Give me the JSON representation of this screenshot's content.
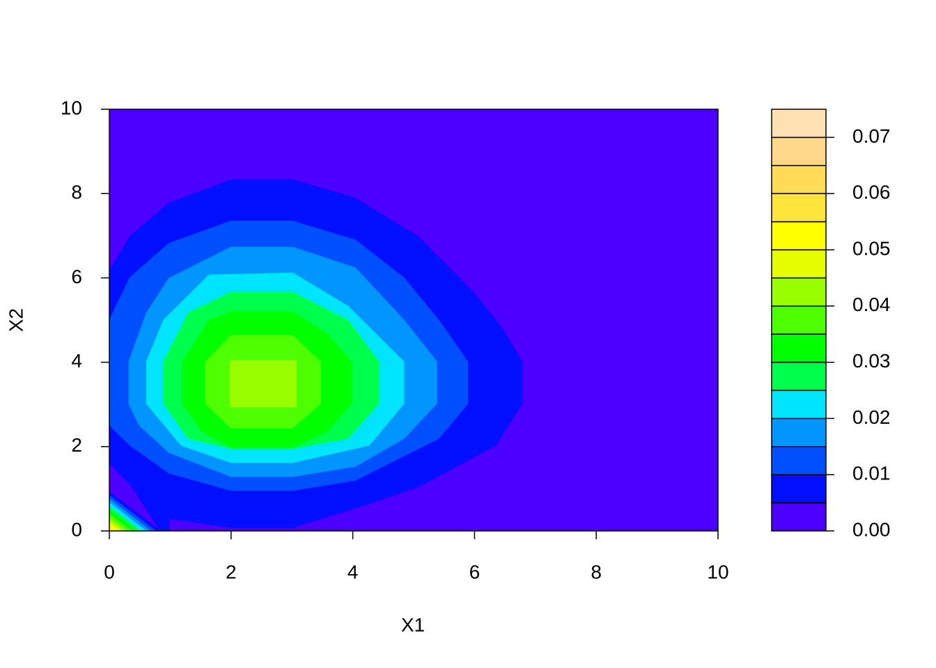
{
  "chart_data": {
    "type": "contour",
    "xlabel": "X1",
    "ylabel": "X2",
    "xlim": [
      0,
      10
    ],
    "ylim": [
      0,
      10
    ],
    "xticks": [
      0,
      2,
      4,
      6,
      8,
      10
    ],
    "yticks": [
      0,
      2,
      4,
      6,
      8,
      10
    ],
    "levels": [
      0,
      0.005,
      0.01,
      0.015,
      0.02,
      0.025,
      0.03,
      0.035,
      0.04,
      0.045,
      0.05,
      0.055,
      0.06,
      0.065,
      0.07,
      0.075
    ],
    "colors": [
      "#4C00FF",
      "#0010FF",
      "#0050FF",
      "#0095FF",
      "#00E5FF",
      "#00FF4D",
      "#00FF00",
      "#4DFF00",
      "#99FF00",
      "#E6FF00",
      "#FFFF00",
      "#FFE53B",
      "#FFDB58",
      "#FFD88A",
      "#FFE0B3"
    ],
    "colorbar_ticks": [
      {
        "value": 0,
        "label": "0.00"
      },
      0.01,
      0.02,
      0.03,
      0.04,
      0.05,
      0.06,
      0.07
    ],
    "regions": [
      {
        "band": 1,
        "x": [
          0,
          0.34,
          0.98,
          2.0,
          3.01,
          4.04,
          5.07,
          5.98,
          6.44,
          6.78,
          6.78,
          6.35,
          5.07,
          4.04,
          3.01,
          2.0,
          0.98,
          0.98,
          0.84,
          0.38,
          0
        ],
        "y": [
          6.15,
          6.98,
          7.77,
          8.33,
          8.33,
          7.89,
          6.98,
          5.66,
          4.83,
          4.01,
          3.02,
          2.03,
          1.04,
          0.54,
          0.08,
          0.08,
          0.3,
          0,
          0,
          1.04,
          1.62
        ]
      },
      {
        "band": 1,
        "x": [
          0,
          0.84,
          0
        ],
        "y": [
          0,
          0,
          0.92
        ]
      },
      {
        "band": 2,
        "x": [
          0,
          0.76,
          0
        ],
        "y": [
          0,
          0,
          0.84
        ]
      },
      {
        "band": 3,
        "x": [
          0,
          0.68,
          0
        ],
        "y": [
          0,
          0,
          0.76
        ]
      },
      {
        "band": 4,
        "x": [
          0,
          0.6,
          0
        ],
        "y": [
          0,
          0,
          0.67
        ]
      },
      {
        "band": 5,
        "x": [
          0,
          0.52,
          0
        ],
        "y": [
          0,
          0,
          0.58
        ]
      },
      {
        "band": 6,
        "x": [
          0,
          0.44,
          0
        ],
        "y": [
          0,
          0,
          0.49
        ]
      },
      {
        "band": 7,
        "x": [
          0,
          0.36,
          0
        ],
        "y": [
          0,
          0,
          0.4
        ]
      },
      {
        "band": 8,
        "x": [
          0,
          0.28,
          0
        ],
        "y": [
          0,
          0,
          0.31
        ]
      },
      {
        "band": 9,
        "x": [
          0,
          0.2,
          0
        ],
        "y": [
          0,
          0,
          0.22
        ]
      },
      {
        "band": 10,
        "x": [
          0,
          0.12,
          0
        ],
        "y": [
          0,
          0,
          0.13
        ]
      },
      {
        "band": 2,
        "x": [
          0,
          0.34,
          0.98,
          2.0,
          3.01,
          4.04,
          4.84,
          5.41,
          5.89,
          5.89,
          5.41,
          4.04,
          3.01,
          2.0,
          0.98,
          0.34,
          0
        ],
        "y": [
          5.0,
          6.01,
          6.82,
          7.35,
          7.35,
          6.9,
          6.0,
          5.0,
          4.01,
          3.02,
          2.19,
          1.2,
          0.96,
          0.96,
          1.37,
          2.03,
          2.51
        ]
      },
      {
        "band": 3,
        "x": [
          0.32,
          0.61,
          0.98,
          2.0,
          3.01,
          4.04,
          4.84,
          5.38,
          5.38,
          4.84,
          4.04,
          3.01,
          2.0,
          0.98,
          0.49,
          0.32
        ],
        "y": [
          4.01,
          5.17,
          5.99,
          6.73,
          6.73,
          6.24,
          5.0,
          4.01,
          3.02,
          2.19,
          1.53,
          1.29,
          1.29,
          1.86,
          2.51,
          3.02
        ]
      },
      {
        "band": 4,
        "x": [
          0.61,
          0.89,
          1.64,
          3.01,
          3.92,
          4.84,
          4.84,
          4.27,
          3.01,
          2.0,
          1.18,
          0.61
        ],
        "y": [
          4.01,
          5.0,
          6.07,
          6.12,
          5.33,
          4.01,
          3.02,
          2.03,
          1.62,
          1.62,
          2.03,
          3.02
        ]
      },
      {
        "band": 5,
        "x": [
          0.89,
          0.89,
          1.3,
          2.0,
          3.01,
          3.92,
          4.43,
          4.43,
          3.92,
          3.01,
          2.0,
          1.3
        ],
        "y": [
          3.02,
          4.01,
          5.17,
          5.66,
          5.66,
          5.0,
          4.01,
          3.02,
          2.19,
          1.95,
          1.95,
          2.19
        ]
      },
      {
        "band": 6,
        "x": [
          1.2,
          1.2,
          1.64,
          2.0,
          3.01,
          3.58,
          3.98,
          3.98,
          3.58,
          3.01,
          2.0,
          1.52
        ],
        "y": [
          3.02,
          4.01,
          5.0,
          5.2,
          5.2,
          4.67,
          4.01,
          3.02,
          2.36,
          1.98,
          1.98,
          2.36
        ]
      },
      {
        "band": 7,
        "x": [
          1.58,
          2.0,
          3.01,
          3.47,
          3.47,
          3.01,
          2.0,
          1.58
        ],
        "y": [
          4.01,
          4.64,
          4.64,
          4.01,
          3.02,
          2.44,
          2.44,
          3.02
        ]
      },
      {
        "band": 8,
        "x": [
          1.98,
          3.07,
          3.07,
          1.98
        ],
        "y": [
          4.04,
          4.04,
          2.94,
          2.94
        ]
      }
    ]
  }
}
